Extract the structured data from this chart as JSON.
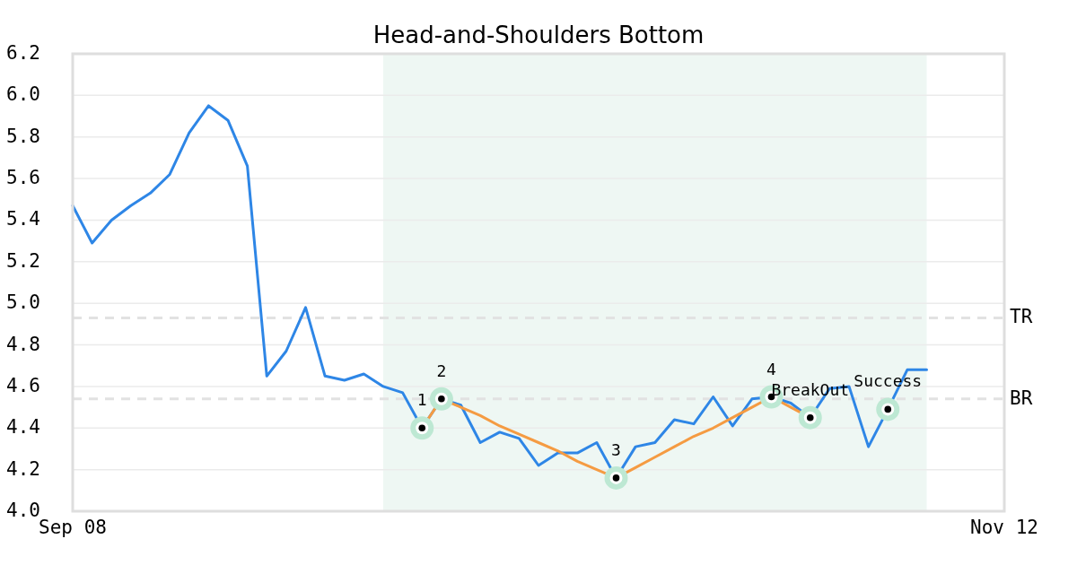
{
  "chart_data": {
    "type": "line",
    "title": "Head-and-Shoulders Bottom",
    "categories": [
      "Sep 08",
      null,
      null,
      null,
      null,
      null,
      null,
      null,
      null,
      null,
      null,
      null,
      null,
      null,
      null,
      null,
      null,
      null,
      null,
      null,
      null,
      null,
      null,
      null,
      null,
      null,
      null,
      null,
      null,
      null,
      null,
      null,
      null,
      null,
      null,
      null,
      null,
      null,
      null,
      null,
      null,
      null,
      null,
      null,
      null,
      null,
      null,
      null,
      "Nov 12"
    ],
    "ylim": [
      4.0,
      6.2
    ],
    "yticks": [
      {
        "value": 4.0,
        "label": "4.0"
      },
      4.2,
      4.4,
      4.6,
      4.8,
      {
        "value": 5.0,
        "label": "5.0"
      },
      5.2,
      5.4,
      5.6,
      5.8,
      {
        "value": 6.0,
        "label": "6.0"
      },
      6.2
    ],
    "grid": "y",
    "series": [
      {
        "color": "#2e86e6",
        "values": [
          5.47,
          5.29,
          5.4,
          5.47,
          5.53,
          5.62,
          5.82,
          5.95,
          5.88,
          5.66,
          4.65,
          4.77,
          4.98,
          4.65,
          4.63,
          4.66,
          4.6,
          4.57,
          4.4,
          4.54,
          4.51,
          4.33,
          4.38,
          4.35,
          4.22,
          4.28,
          4.28,
          4.33,
          4.16,
          4.31,
          4.33,
          4.44,
          4.42,
          4.55,
          4.41,
          4.54,
          4.55,
          4.52,
          4.45,
          4.59,
          4.6,
          4.31,
          4.49,
          4.68,
          4.68,
          null,
          null,
          null,
          null
        ]
      },
      {
        "type": "line",
        "color": "#f59b42",
        "values": [
          null,
          null,
          null,
          null,
          null,
          null,
          null,
          null,
          null,
          null,
          null,
          null,
          null,
          null,
          null,
          null,
          null,
          null,
          4.4,
          4.54,
          4.5,
          4.46,
          4.41,
          4.37,
          4.33,
          4.29,
          4.24,
          4.2,
          4.16,
          4.21,
          4.26,
          4.31,
          4.36,
          4.4,
          4.45,
          4.5,
          4.55,
          4.5,
          4.45,
          null,
          null,
          null,
          null,
          null,
          null,
          null,
          null,
          null,
          null
        ]
      },
      {
        "type": "scatter",
        "color": "#bde8d3",
        "marker": "circle",
        "values": [
          null,
          null,
          null,
          null,
          null,
          null,
          null,
          null,
          null,
          null,
          null,
          null,
          null,
          null,
          null,
          null,
          null,
          null,
          4.4,
          4.54,
          null,
          null,
          null,
          null,
          null,
          null,
          null,
          null,
          4.16,
          null,
          null,
          null,
          null,
          null,
          null,
          null,
          4.55,
          null,
          4.45,
          null,
          null,
          null,
          4.49,
          null,
          null,
          null,
          null,
          null,
          null
        ]
      }
    ],
    "ref_lines": [
      {
        "axis": "y",
        "value": 4.93,
        "label": "TR",
        "color": "#e2e2e2",
        "line_style": "dashed"
      },
      {
        "axis": "y",
        "value": 4.54,
        "label": "BR",
        "color": "#e2e2e2",
        "line_style": "dashed"
      }
    ],
    "annotations": [
      {
        "text": "1",
        "y": 4.4
      },
      {
        "text": "2",
        "y": 4.54
      },
      {
        "text": "3",
        "y": 4.16
      },
      {
        "text": "4",
        "y": 4.55
      },
      {
        "text": "BreakOut",
        "y": 4.45
      },
      {
        "text": "Success",
        "y": 4.49
      }
    ]
  }
}
